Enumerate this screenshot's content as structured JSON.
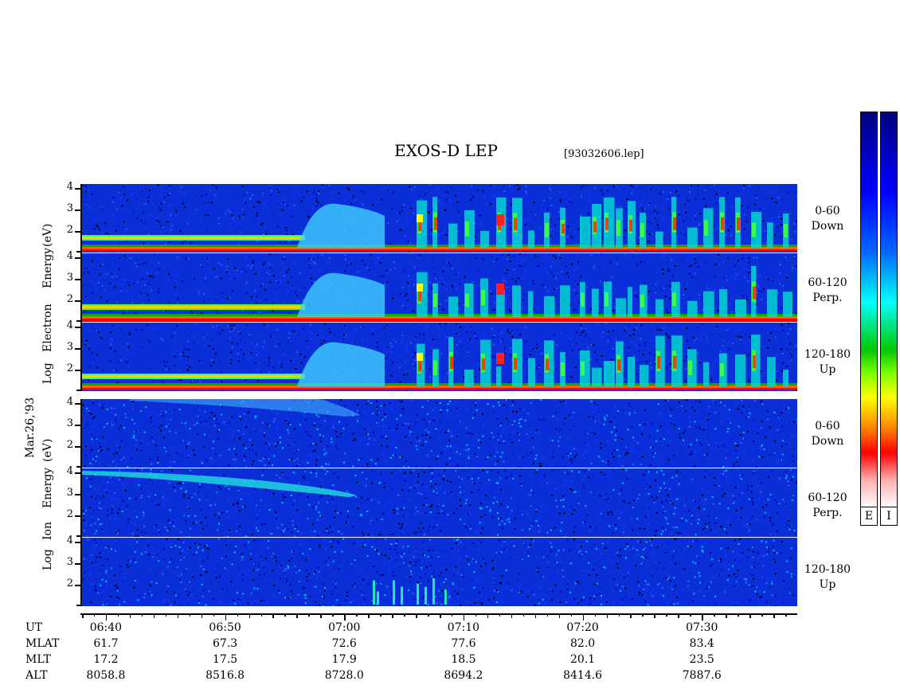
{
  "chart_data": {
    "type": "heatmap",
    "title": "EXOS-D LEP",
    "file": "[93032606.lep]",
    "date": "Mar.26,'93",
    "electron_ylabel": "Log Electron Energy (eV)",
    "electron_ylabel_parts": [
      "Log",
      "Electron",
      "Energy",
      "(eV)"
    ],
    "ion_ylabel_parts": [
      "Log",
      "Ion",
      "Energy",
      "(eV)"
    ],
    "yticks": [
      "4",
      "3",
      "2"
    ],
    "ylim": [
      1,
      4.2
    ],
    "pitch_angles": [
      {
        "range": "0-60",
        "direction": "Down"
      },
      {
        "range": "60-120",
        "direction": "Perp."
      },
      {
        "range": "120-180",
        "direction": "Up"
      }
    ],
    "colorbars": [
      "E",
      "I"
    ],
    "x_rows": [
      {
        "label": "UT",
        "values": [
          "06:40",
          "06:50",
          "07:00",
          "07:10",
          "07:20",
          "07:30"
        ]
      },
      {
        "label": "MLAT",
        "values": [
          "61.7",
          "67.3",
          "72.6",
          "77.6",
          "82.0",
          "83.4"
        ]
      },
      {
        "label": "MLT",
        "values": [
          "17.2",
          "17.5",
          "17.9",
          "18.5",
          "20.1",
          "23.5"
        ]
      },
      {
        "label": "ALT",
        "values": [
          "8058.8",
          "8516.8",
          "8728.0",
          "8694.2",
          "8414.6",
          "7887.6"
        ]
      }
    ],
    "colors": {
      "low": "#00007f",
      "mid": "#00ffff",
      "green": "#00c800",
      "high": "#ff0000",
      "top": "#ffffff"
    }
  }
}
